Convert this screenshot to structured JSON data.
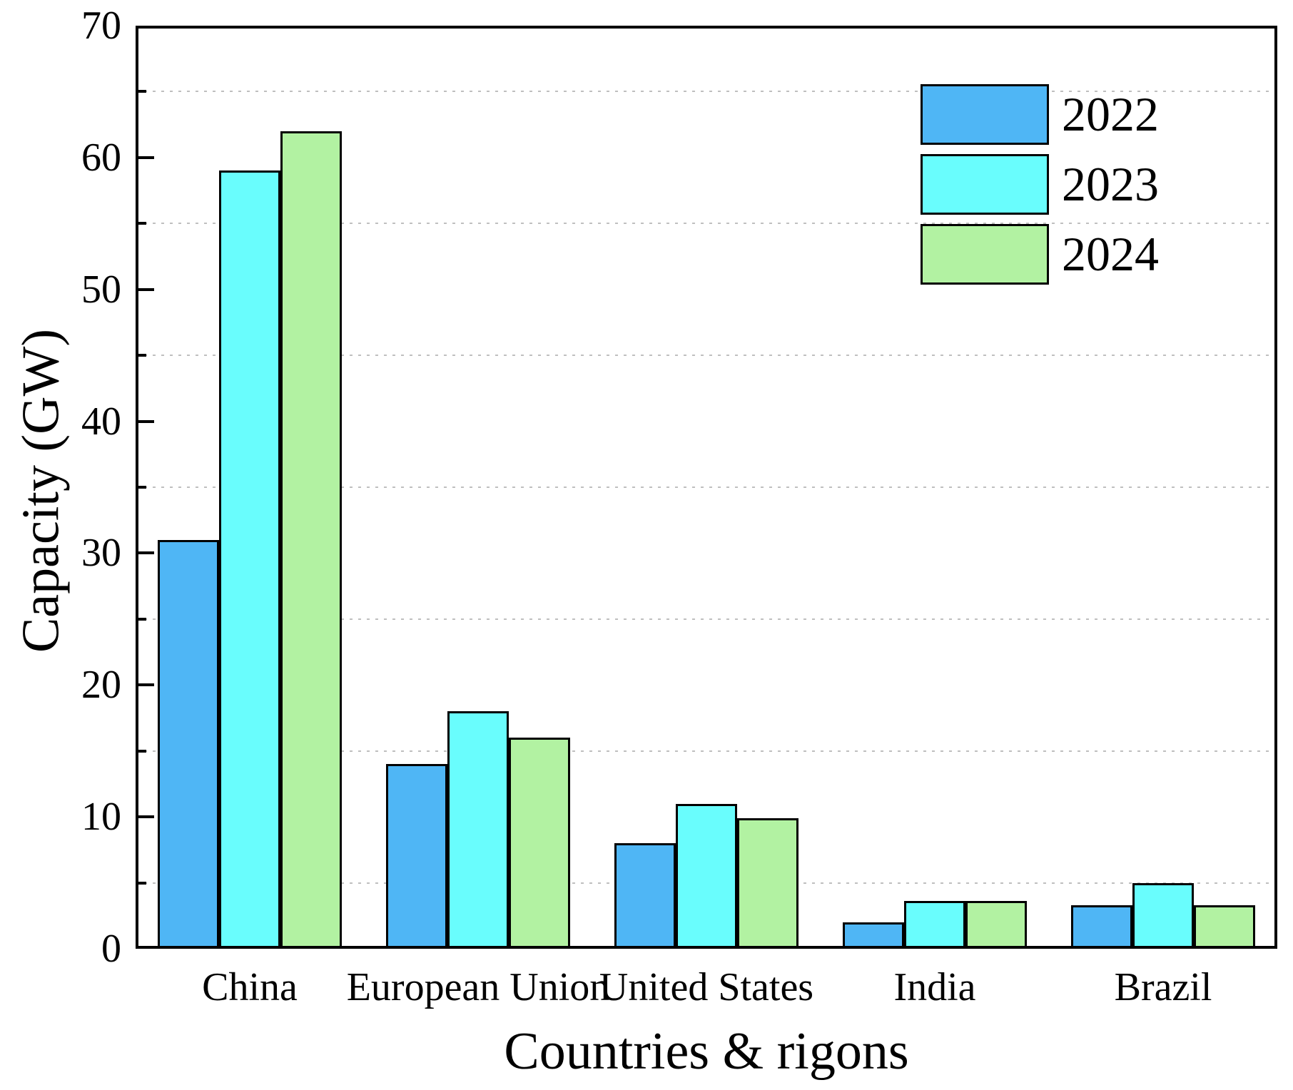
{
  "chart_data": {
    "type": "bar",
    "title": "",
    "xlabel": "Countries & rigons",
    "ylabel": "Capacity (GW)",
    "categories": [
      "China",
      "European Union",
      "United States",
      "India",
      "Brazil"
    ],
    "series": [
      {
        "name": "2022",
        "color": "#4FB6F5",
        "values": [
          31,
          14,
          8,
          2,
          3.3
        ]
      },
      {
        "name": "2023",
        "color": "#69FDFD",
        "values": [
          59,
          18,
          11,
          3.6,
          5
        ]
      },
      {
        "name": "2024",
        "color": "#B2F2A2",
        "values": [
          62,
          16,
          9.9,
          3.6,
          3.3
        ]
      }
    ],
    "ylim": [
      0,
      70
    ],
    "y_major_ticks": [
      0,
      10,
      20,
      30,
      40,
      50,
      60,
      70
    ],
    "y_minor_ticks": [
      5,
      15,
      25,
      35,
      45,
      55,
      65
    ],
    "gridlines": {
      "positions": [
        5,
        15,
        25,
        35,
        45,
        55,
        65
      ],
      "style": "dashed",
      "color": "#bfbfbf"
    },
    "legend_position": "top-right",
    "bar_border_color": "#000000",
    "axis_color": "#000000",
    "grid": "minor-horizontal-dashed"
  }
}
